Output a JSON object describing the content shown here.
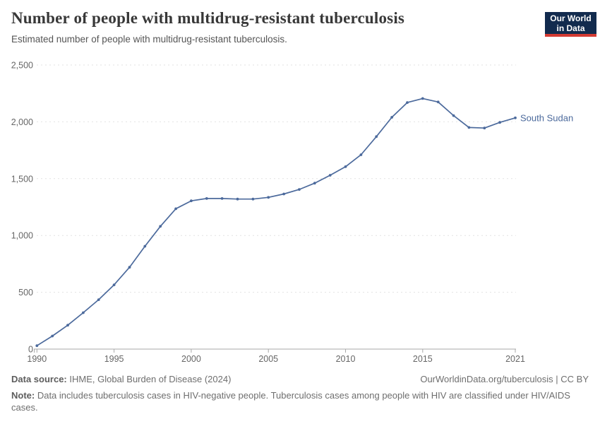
{
  "header": {
    "title": "Number of people with multidrug-resistant tuberculosis",
    "subtitle": "Estimated number of people with multidrug-resistant tuberculosis.",
    "logo": {
      "line1": "Our World",
      "line2": "in Data"
    }
  },
  "chart_data": {
    "type": "line",
    "title": "Number of people with multidrug-resistant tuberculosis",
    "xlabel": "",
    "ylabel": "",
    "xlim": [
      1990,
      2021
    ],
    "ylim": [
      0,
      2500
    ],
    "x_ticks": [
      1990,
      1995,
      2000,
      2005,
      2010,
      2015,
      2021
    ],
    "y_ticks": [
      0,
      500,
      1000,
      1500,
      2000,
      2500
    ],
    "grid": true,
    "legend_position": "end-of-line",
    "series": [
      {
        "name": "South Sudan",
        "color": "#4c6a9c",
        "x": [
          1990,
          1991,
          1992,
          1993,
          1994,
          1995,
          1996,
          1997,
          1998,
          1999,
          2000,
          2001,
          2002,
          2003,
          2004,
          2005,
          2006,
          2007,
          2008,
          2009,
          2010,
          2011,
          2012,
          2013,
          2014,
          2015,
          2016,
          2017,
          2018,
          2019,
          2020,
          2021
        ],
        "values": [
          30,
          115,
          210,
          320,
          435,
          565,
          720,
          905,
          1080,
          1235,
          1305,
          1325,
          1325,
          1320,
          1320,
          1335,
          1365,
          1405,
          1460,
          1530,
          1605,
          1710,
          1870,
          2040,
          2170,
          2205,
          2175,
          2055,
          1950,
          1945,
          1995,
          2035
        ]
      }
    ]
  },
  "colors": {
    "line": "#4c6a9c",
    "grid": "#e2e2e2",
    "axis": "#a8a8a8",
    "tick_label": "#666666",
    "title": "#383838",
    "subtitle": "#555555",
    "footer": "#6e6e6e",
    "logo_bg": "#122b4e",
    "logo_red": "#d43b33"
  },
  "footer": {
    "source_label": "Data source:",
    "source_text": " IHME, Global Burden of Disease (2024)",
    "rights": "OurWorldinData.org/tuberculosis | CC BY",
    "note_label": "Note:",
    "note_text": " Data includes tuberculosis cases in HIV-negative people. Tuberculosis cases among people with HIV are classified under HIV/AIDS cases."
  }
}
